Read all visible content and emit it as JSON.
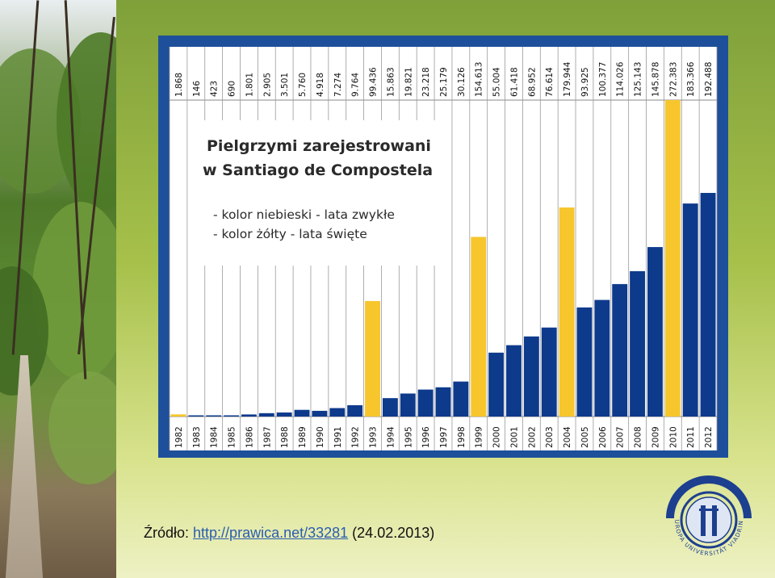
{
  "source": {
    "prefix": "Źródło: ",
    "link": "http://prawica.net/33281",
    "suffix": " (24.02.2013)"
  },
  "logo": {
    "text": "EUROPA UNIVERSITÄT VIADRINA"
  },
  "colors": {
    "regular_year": "#0e3a8c",
    "holy_year": "#f6c62c",
    "panel": "#1e4f9a"
  },
  "chart_data": {
    "type": "bar",
    "title": "Pielgrzymi zarejestrowani w Santiago de Compostela",
    "legend": [
      "- kolor niebieski - lata zwykłe",
      "- kolor żółty - lata święte"
    ],
    "categories": [
      "1982",
      "1983",
      "1984",
      "1985",
      "1986",
      "1987",
      "1988",
      "1989",
      "1990",
      "1991",
      "1992",
      "1993",
      "1994",
      "1995",
      "1996",
      "1997",
      "1998",
      "1999",
      "2000",
      "2001",
      "2002",
      "2003",
      "2004",
      "2005",
      "2006",
      "2007",
      "2008",
      "2009",
      "2010",
      "2011",
      "2012"
    ],
    "labels": [
      "1.868",
      "146",
      "423",
      "690",
      "1.801",
      "2.905",
      "3.501",
      "5.760",
      "4.918",
      "7.274",
      "9.764",
      "99.436",
      "15.863",
      "19.821",
      "23.218",
      "25.179",
      "30.126",
      "154.613",
      "55.004",
      "61.418",
      "68.952",
      "76.614",
      "179.944",
      "93.925",
      "100.377",
      "114.026",
      "125.143",
      "145.878",
      "272.383",
      "183.366",
      "192.488"
    ],
    "values": [
      1868,
      146,
      423,
      690,
      1801,
      2905,
      3501,
      5760,
      4918,
      7274,
      9764,
      99436,
      15863,
      19821,
      23218,
      25179,
      30126,
      154613,
      55004,
      61418,
      68952,
      76614,
      179944,
      93925,
      100377,
      114026,
      125143,
      145878,
      272383,
      183366,
      192488
    ],
    "holy": [
      true,
      false,
      false,
      false,
      false,
      false,
      false,
      false,
      false,
      false,
      false,
      true,
      false,
      false,
      false,
      false,
      false,
      true,
      false,
      false,
      false,
      false,
      true,
      false,
      false,
      false,
      false,
      false,
      true,
      false,
      false
    ],
    "ylim": [
      0,
      272383
    ],
    "grid": true
  }
}
